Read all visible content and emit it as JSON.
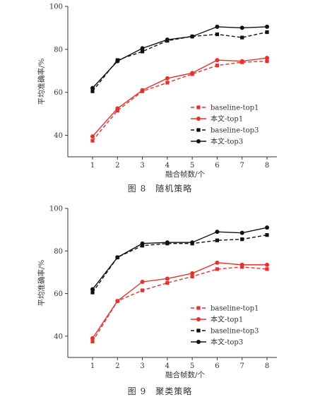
{
  "chart_data": [
    {
      "type": "line",
      "xlabel": "融合帧数/个",
      "ylabel": "平均准确率/%",
      "ylim": [
        30,
        100
      ],
      "yticks": [
        40,
        60,
        80,
        100
      ],
      "x": [
        1,
        2,
        3,
        4,
        5,
        6,
        7,
        8
      ],
      "legend_position": "lower-right",
      "series": [
        {
          "name": "baseline-top1",
          "color": "#e8312a",
          "dashed": true,
          "marker": "square",
          "values": [
            37.5,
            51.5,
            60.5,
            64.5,
            68.5,
            72.5,
            74.0,
            74.5
          ]
        },
        {
          "name": "本文-top1",
          "color": "#e8312a",
          "dashed": false,
          "marker": "circle",
          "values": [
            39.5,
            52.5,
            61.0,
            66.5,
            69.0,
            75.0,
            74.5,
            76.0
          ]
        },
        {
          "name": "baseline-top3",
          "color": "#111111",
          "dashed": true,
          "marker": "square",
          "values": [
            60.5,
            75.0,
            79.0,
            84.0,
            86.0,
            87.0,
            85.5,
            88.0
          ]
        },
        {
          "name": "本文-top3",
          "color": "#111111",
          "dashed": false,
          "marker": "circle",
          "values": [
            62.0,
            74.5,
            80.5,
            84.5,
            86.0,
            90.5,
            90.0,
            90.5
          ]
        }
      ],
      "caption": "图 8　随机策略"
    },
    {
      "type": "line",
      "xlabel": "融合帧数/个",
      "ylabel": "平均准确率/%",
      "ylim": [
        30,
        100
      ],
      "yticks": [
        40,
        60,
        80,
        100
      ],
      "x": [
        1,
        2,
        3,
        4,
        5,
        6,
        7,
        8
      ],
      "legend_position": "lower-right",
      "series": [
        {
          "name": "baseline-top1",
          "color": "#e8312a",
          "dashed": true,
          "marker": "square",
          "values": [
            37.5,
            56.5,
            61.5,
            65.0,
            68.0,
            71.5,
            72.5,
            71.5
          ]
        },
        {
          "name": "本文-top1",
          "color": "#e8312a",
          "dashed": false,
          "marker": "circle",
          "values": [
            39.0,
            56.5,
            65.5,
            67.0,
            69.5,
            74.5,
            73.5,
            73.5
          ]
        },
        {
          "name": "baseline-top3",
          "color": "#111111",
          "dashed": true,
          "marker": "square",
          "values": [
            60.5,
            77.0,
            82.5,
            83.5,
            83.5,
            85.0,
            85.5,
            87.5
          ]
        },
        {
          "name": "本文-top3",
          "color": "#111111",
          "dashed": false,
          "marker": "circle",
          "values": [
            62.0,
            77.0,
            83.5,
            84.0,
            84.0,
            89.0,
            88.5,
            91.0
          ]
        }
      ],
      "caption": "图 9　聚类策略"
    }
  ]
}
